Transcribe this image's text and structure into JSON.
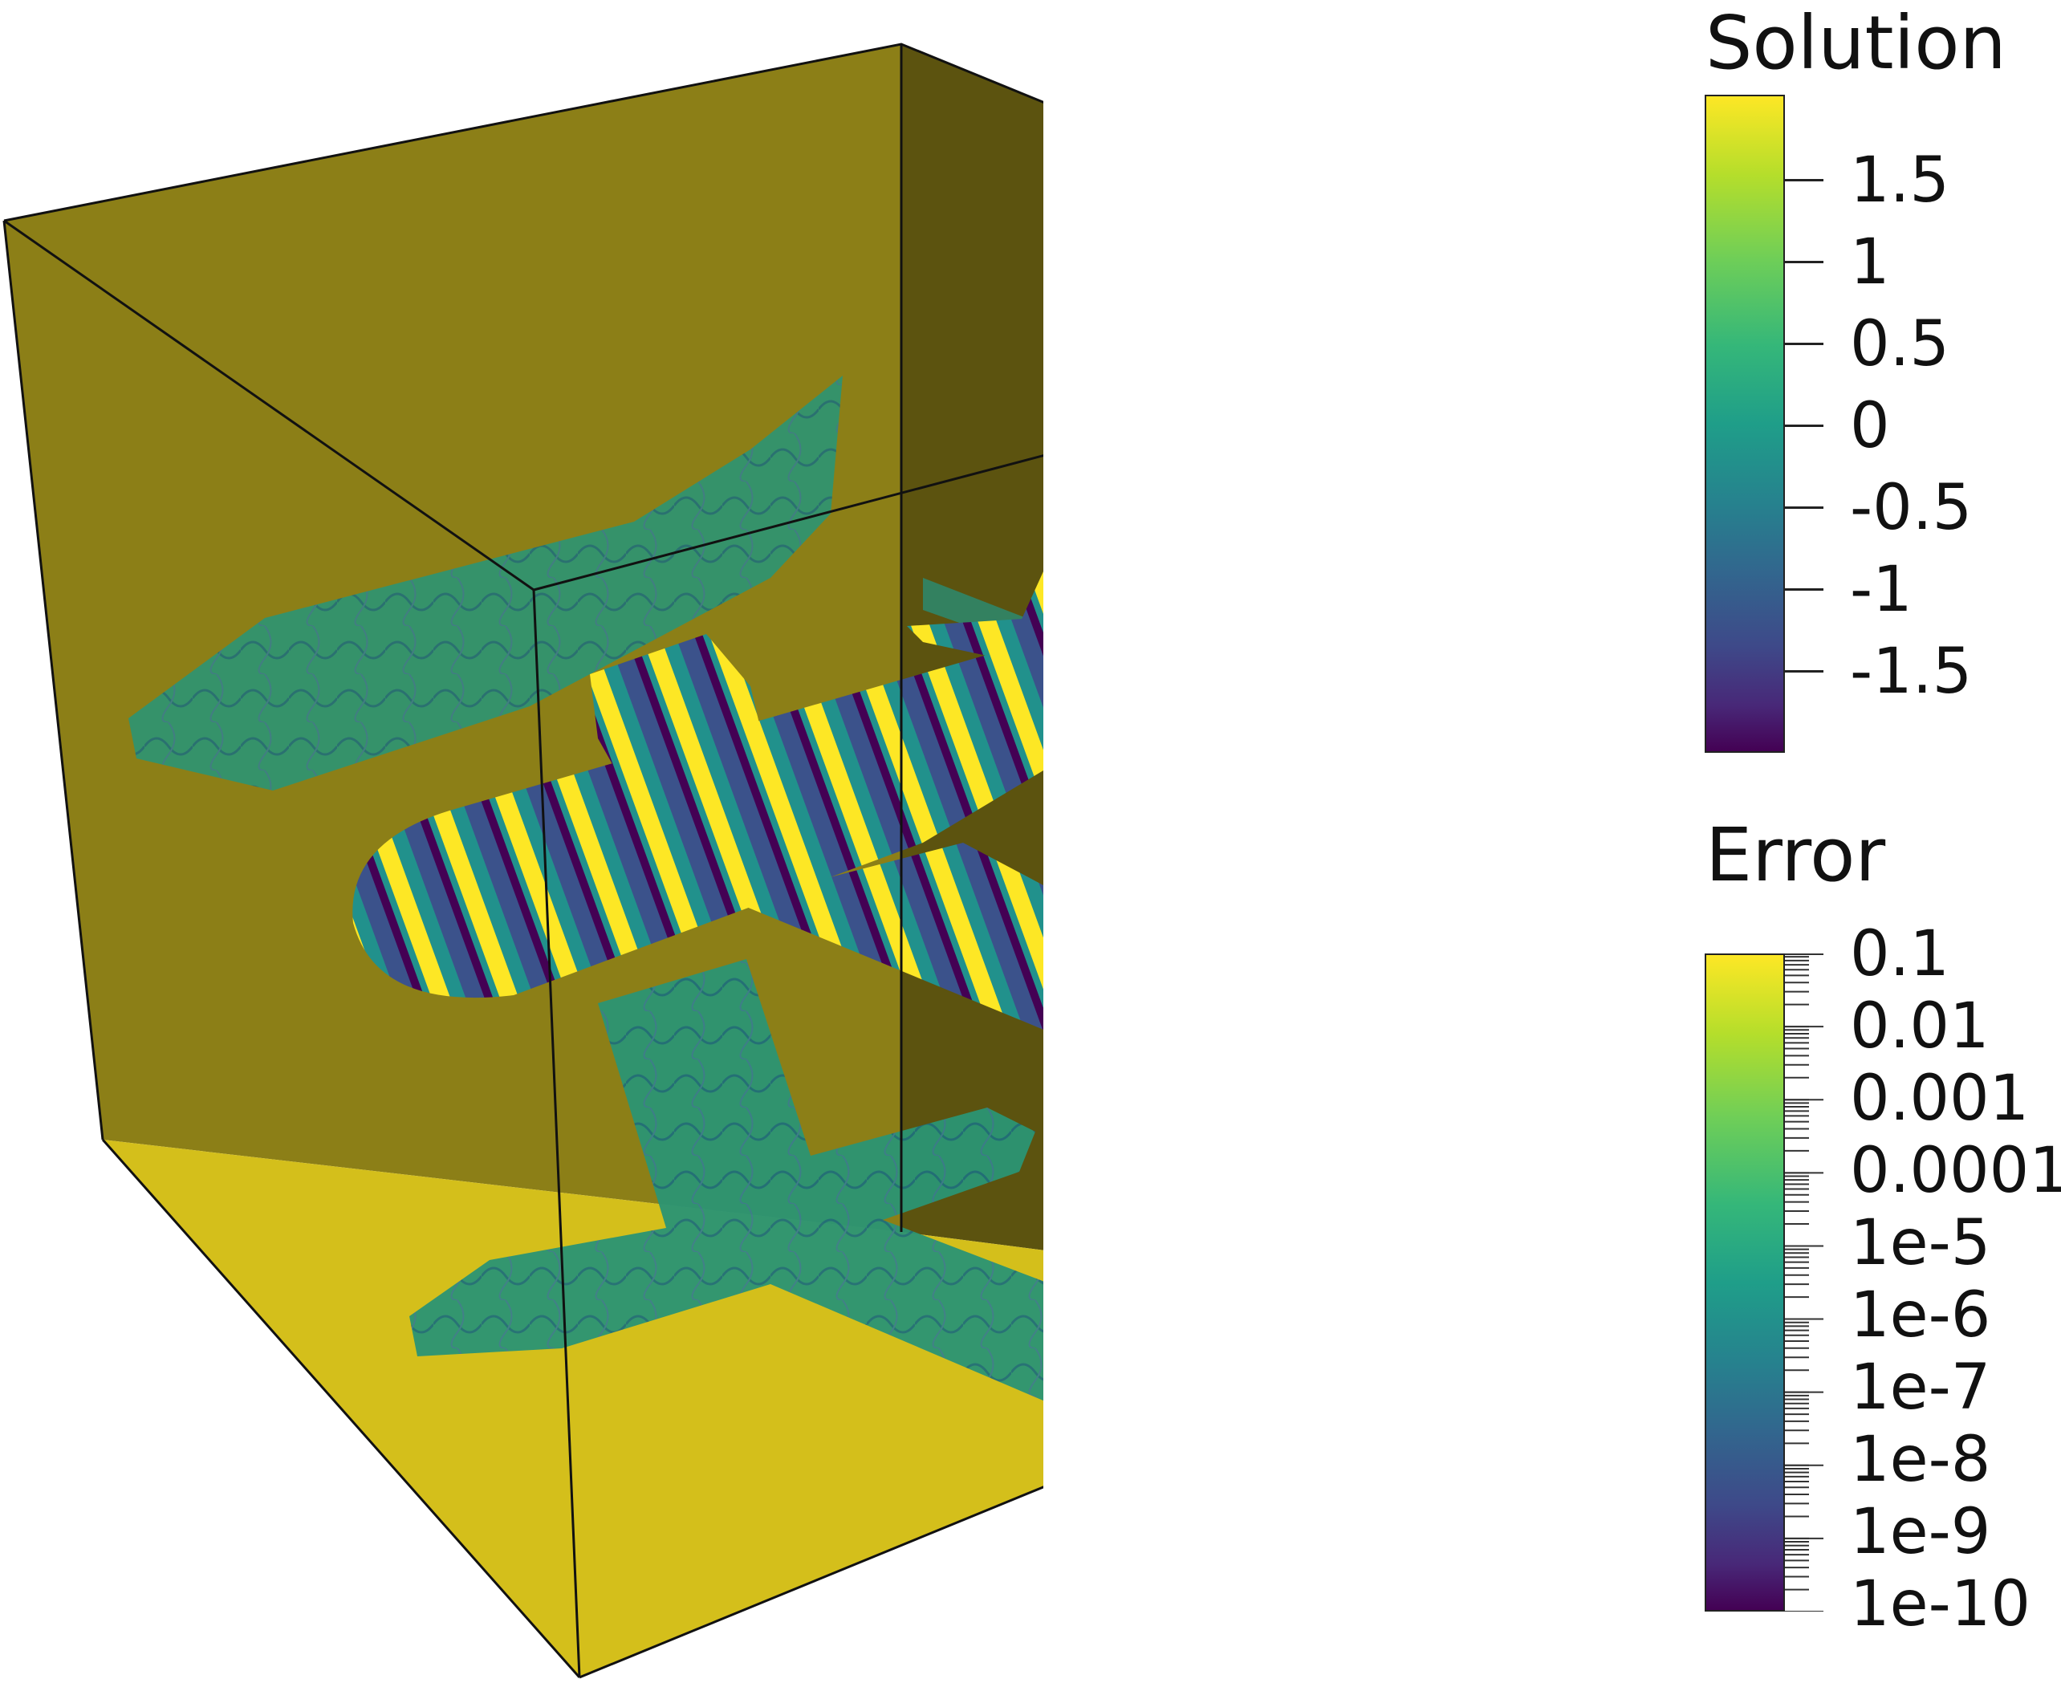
{
  "legends": {
    "solution": {
      "title": "Solution",
      "ticks": [
        "1.5",
        "1",
        "0.5",
        "0",
        "-0.5",
        "-1",
        "-1.5"
      ]
    },
    "error": {
      "title": "Error",
      "ticks": [
        "0.1",
        "0.01",
        "0.001",
        "0.0001",
        "1e-5",
        "1e-6",
        "1e-7",
        "1e-8",
        "1e-9",
        "1e-10"
      ]
    }
  },
  "colors": {
    "box_back": "#8c7f17",
    "box_right": "#5c530f",
    "box_floor": "#d4bf1b",
    "shadow": "#2f8f6e",
    "plane_a": "#2a788e",
    "plane_b": "#fde725",
    "plane_c": "#440154"
  }
}
